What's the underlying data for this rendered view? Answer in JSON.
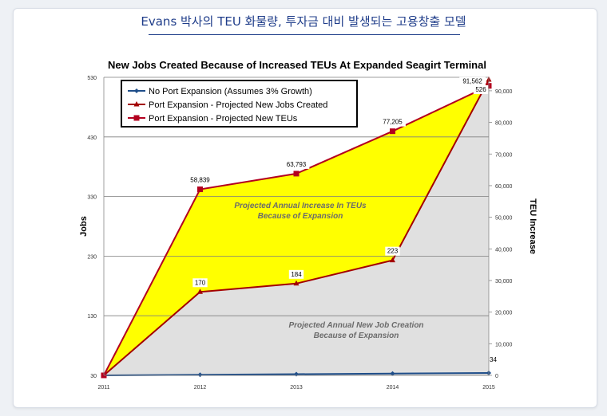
{
  "page": {
    "title": "Evans 박사의 TEU 화물량, 투자금 대비 발생되는 고용창출 모델"
  },
  "colors": {
    "teu_fill": "#ffff00",
    "jobs_fill": "#e0e0e0",
    "teu_line": "#b3001f",
    "jobs_line": "#a30000",
    "baseline": "#1f4e8a",
    "grid": "#7f7f7f"
  },
  "chart_data": {
    "type": "area",
    "title": "New Jobs Created Because of Increased TEUs At Expanded Seagirt Terminal",
    "xlabel": "",
    "ylabel": "Jobs",
    "y2label": "TEU Increase",
    "categories": [
      "2011",
      "2012",
      "2013",
      "2014",
      "2015"
    ],
    "ylim": [
      30,
      530
    ],
    "y_ticks": [
      "530",
      "430",
      "330",
      "230",
      "130",
      "30"
    ],
    "y2lim": [
      0,
      92000
    ],
    "y2_ticks": [
      "90,000",
      "80,000",
      "70,000",
      "60,000",
      "50,000",
      "40,000",
      "30,000",
      "20,000",
      "10,000",
      "0"
    ],
    "legend": {
      "position": "top-left",
      "entries": [
        "No Port Expansion (Assumes 3% Growth)",
        "Port Expansion - Projected New Jobs Created",
        "Port Expansion - Projected New TEUs"
      ]
    },
    "series": [
      {
        "name": "No Port Expansion (Assumes 3% Growth)",
        "axis": "y",
        "values": [
          30,
          31,
          32,
          33,
          34
        ],
        "labels": [
          "",
          "",
          "",
          "",
          "34"
        ]
      },
      {
        "name": "Port Expansion - Projected New Jobs Created",
        "axis": "y",
        "values": [
          30,
          170,
          184,
          223,
          526
        ],
        "labels": [
          "",
          "170",
          "184",
          "223",
          "526"
        ]
      },
      {
        "name": "Port Expansion - Projected New TEUs",
        "axis": "y2",
        "values": [
          0,
          58839,
          63793,
          77205,
          91562
        ],
        "labels": [
          "",
          "58,839",
          "63,793",
          "77,205",
          "91,562"
        ]
      }
    ],
    "annotations": [
      {
        "lines": [
          "Projected Annual Increase In TEUs",
          "Because of Expansion"
        ]
      },
      {
        "lines": [
          "Projected Annual New Job Creation",
          "Because of Expansion"
        ]
      }
    ]
  }
}
